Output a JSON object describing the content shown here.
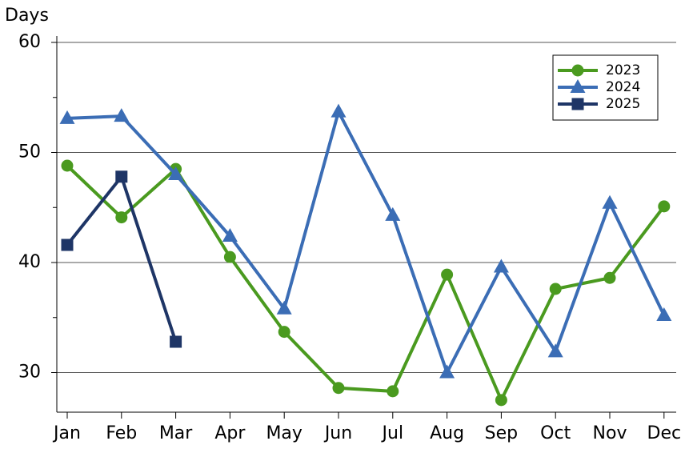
{
  "chart_data": {
    "type": "line",
    "y_label": "Days",
    "categories": [
      "Jan",
      "Feb",
      "Mar",
      "Apr",
      "May",
      "Jun",
      "Jul",
      "Aug",
      "Sep",
      "Oct",
      "Nov",
      "Dec"
    ],
    "series": [
      {
        "name": "2023",
        "color": "#4a9a1f",
        "marker": "circle",
        "values": [
          48.8,
          44.1,
          48.5,
          40.5,
          33.7,
          28.6,
          28.3,
          38.9,
          27.5,
          37.6,
          38.6,
          45.1
        ]
      },
      {
        "name": "2024",
        "color": "#3b6db5",
        "marker": "triangle",
        "values": [
          53.1,
          53.3,
          48.0,
          42.4,
          35.8,
          53.7,
          44.3,
          30.0,
          39.6,
          31.9,
          45.4,
          35.2
        ]
      },
      {
        "name": "2025",
        "color": "#1e3566",
        "marker": "square",
        "values": [
          41.6,
          47.8,
          32.8,
          null,
          null,
          null,
          null,
          null,
          null,
          null,
          null,
          null
        ]
      }
    ],
    "ylim": [
      26.4,
      60
    ],
    "yticks": [
      30,
      40,
      50,
      60
    ],
    "yminorticks": [
      35,
      45,
      55
    ],
    "grid": true,
    "legend": "top-right"
  }
}
